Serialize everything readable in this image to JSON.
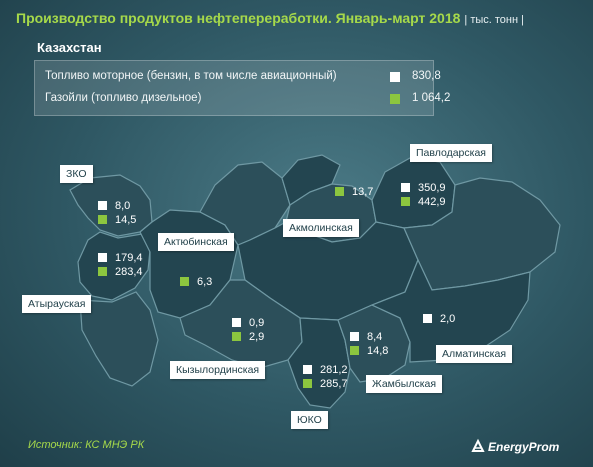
{
  "header": {
    "title": "Производство продуктов нефтепереработки. Январь-март 2018",
    "unit": "| тыс. тонн |"
  },
  "country": {
    "name": "Казахстан",
    "legend": [
      {
        "label": "Топливо моторное (бензин, в том числе авиационный)",
        "color": "#ffffff",
        "value": "830,8"
      },
      {
        "label": "Газойли (топливо дизельное)",
        "color": "#8cc63f",
        "value": "1 064,2"
      }
    ]
  },
  "regions": {
    "zko": {
      "name": "ЗКО",
      "motor": "8,0",
      "gasoil": "14,5"
    },
    "atyrau": {
      "name": "Атырауская",
      "motor": "179,4",
      "gasoil": "283,4"
    },
    "aktobe": {
      "name": "Актюбинская",
      "gasoil": "6,3"
    },
    "kyzylorda": {
      "name": "Кызылординская",
      "motor": "0,9",
      "gasoil": "2,9"
    },
    "uko": {
      "name": "ЮКО",
      "motor": "281,2",
      "gasoil": "285,7"
    },
    "zhambyl": {
      "name": "Жамбылская",
      "motor": "8,4",
      "gasoil": "14,8"
    },
    "almaty": {
      "name": "Алматинская",
      "motor": "2,0"
    },
    "akmola": {
      "name": "Акмолинская",
      "gasoil": "13,7"
    },
    "pavlodar": {
      "name": "Павлодарская",
      "motor": "350,9",
      "gasoil": "442,9"
    }
  },
  "footer": {
    "source": "Источник: КС МНЭ РК",
    "brand": "EnergyProm"
  }
}
